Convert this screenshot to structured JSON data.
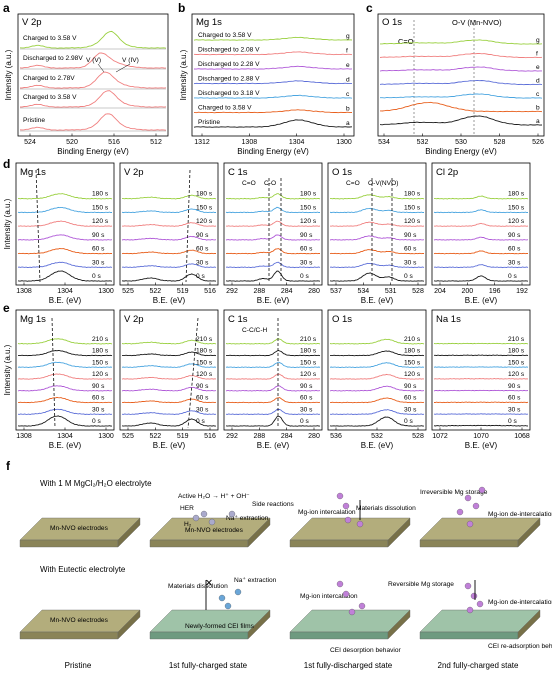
{
  "figure": {
    "rowA": {
      "a": {
        "label": "a",
        "element": "V 2p",
        "xlabel": "Binding Energy (eV)",
        "ylabel": "Intensity (a.u.)",
        "xticks": [
          "524",
          "520",
          "516",
          "512"
        ],
        "curves": [
          "Charged to 3.58 V",
          "Discharged to 2.98V",
          "Charged to 2.78V",
          "Charged to 3.58 V",
          "Pristine"
        ],
        "annotations": [
          "V (V)",
          "V (IV)"
        ]
      },
      "b": {
        "label": "b",
        "element": "Mg 1s",
        "xlabel": "Binding Energy (eV)",
        "ylabel": "Intensity (a.u.)",
        "xticks": [
          "1312",
          "1308",
          "1304",
          "1300"
        ],
        "curves": [
          "Charged to 3.58 V",
          "Discharged to 2.08 V",
          "Discharged to 2.28 V",
          "Discharged to 2.88 V",
          "Discharged to 3.18 V",
          "Charged to 3.58 V",
          "Pristine"
        ],
        "letters": [
          "g",
          "f",
          "e",
          "d",
          "c",
          "b",
          "a"
        ]
      },
      "c": {
        "label": "c",
        "element": "O 1s",
        "xlabel": "Binding Energy (eV)",
        "xticks": [
          "534",
          "532",
          "530",
          "528",
          "526"
        ],
        "annotations": [
          "C=O",
          "O-V (Mn-NVO)"
        ],
        "letters": [
          "g",
          "f",
          "e",
          "d",
          "c",
          "b",
          "a"
        ]
      }
    },
    "rowD": {
      "label": "d",
      "xlabel": "B.E. (eV)",
      "ylabel": "Intensity (a.u.)",
      "times": [
        "180 s",
        "150 s",
        "120 s",
        "90 s",
        "60 s",
        "30 s",
        "0 s"
      ],
      "panels": [
        {
          "element": "Mg 1s",
          "xticks": [
            "1308",
            "1304",
            "1300"
          ],
          "notes": []
        },
        {
          "element": "V 2p",
          "xticks": [
            "525",
            "522",
            "519",
            "516"
          ],
          "notes": []
        },
        {
          "element": "C 1s",
          "xticks": [
            "292",
            "288",
            "284",
            "280"
          ],
          "notes": [
            "C=O",
            "C-O"
          ]
        },
        {
          "element": "O 1s",
          "xticks": [
            "537",
            "534",
            "531",
            "528"
          ],
          "notes": [
            "C=O",
            "O-V(NVO)"
          ]
        },
        {
          "element": "Cl 2p",
          "xticks": [
            "204",
            "200",
            "196",
            "192"
          ],
          "notes": []
        }
      ]
    },
    "rowE": {
      "label": "e",
      "xlabel": "B.E. (eV)",
      "ylabel": "Intensity (a.u.)",
      "times": [
        "210 s",
        "180 s",
        "150 s",
        "120 s",
        "90 s",
        "60 s",
        "30 s",
        "0 s"
      ],
      "panels": [
        {
          "element": "Mg 1s",
          "xticks": [
            "1308",
            "1304",
            "1300"
          ],
          "notes": []
        },
        {
          "element": "V 2p",
          "xticks": [
            "525",
            "522",
            "519",
            "516"
          ],
          "notes": []
        },
        {
          "element": "C 1s",
          "xticks": [
            "292",
            "288",
            "284",
            "280"
          ],
          "notes": [
            "C-C/C-H"
          ]
        },
        {
          "element": "O 1s",
          "xticks": [
            "536",
            "532",
            "528"
          ],
          "notes": []
        },
        {
          "element": "Na 1s",
          "xticks": [
            "1072",
            "1070",
            "1068"
          ],
          "notes": []
        }
      ]
    },
    "schematic": {
      "label": "f",
      "row1_title": "With 1 M MgCl₂/H₂O electrolyte",
      "row2_title": "With Eutectic electrolyte",
      "col_labels": [
        "Pristine",
        "1st fully-charged state",
        "1st fully-discharged state",
        "2nd fully-charged state"
      ],
      "electrode": "Mn-NVO electrodes",
      "cei": "Newly-formed CEI films",
      "row1_notes": [
        "Active H₂O → H⁺ + OH⁻",
        "HER",
        "Side reactions",
        "H₂",
        "Na⁺ extraction",
        "Mg-ion intercalation",
        "Materials dissolution",
        "Irreversible Mg storage",
        "Mg-ion de-intercalation"
      ],
      "row2_notes": [
        "Materials dissolution",
        "Na⁺ extraction",
        "Mg-ion intercalation",
        "Reversible Mg storage",
        "CEI desorption behavior",
        "Mg-ion de-intercalation",
        "CEI re-adsorption behavior"
      ]
    }
  },
  "colors": [
    "#f08080",
    "#4aa5e0",
    "#b05ad8",
    "#e8601e",
    "#5c6ed8",
    "#9ad040",
    "#1a1a1a"
  ],
  "chart_data": [
    {
      "type": "line",
      "panel": "a",
      "title": "V 2p",
      "xlabel": "Binding Energy (eV)",
      "ylabel": "Intensity (a.u.)",
      "xlim": [
        526,
        510
      ],
      "series_count": 5
    },
    {
      "type": "line",
      "panel": "b",
      "title": "Mg 1s",
      "xlabel": "Binding Energy (eV)",
      "ylabel": "Intensity (a.u.)",
      "xlim": [
        1313,
        1299
      ],
      "series_count": 7
    },
    {
      "type": "line",
      "panel": "c",
      "title": "O 1s",
      "xlabel": "Binding Energy (eV)",
      "xlim": [
        534,
        526
      ],
      "series_count": 7,
      "ref_lines": [
        532.0,
        529.2
      ]
    },
    {
      "type": "line",
      "panel": "d",
      "xlabel": "B.E. (eV)",
      "ylabel": "Intensity (a.u.)",
      "series_count": 7
    },
    {
      "type": "line",
      "panel": "e",
      "xlabel": "B.E. (eV)",
      "ylabel": "Intensity (a.u.)",
      "series_count": 8
    }
  ]
}
